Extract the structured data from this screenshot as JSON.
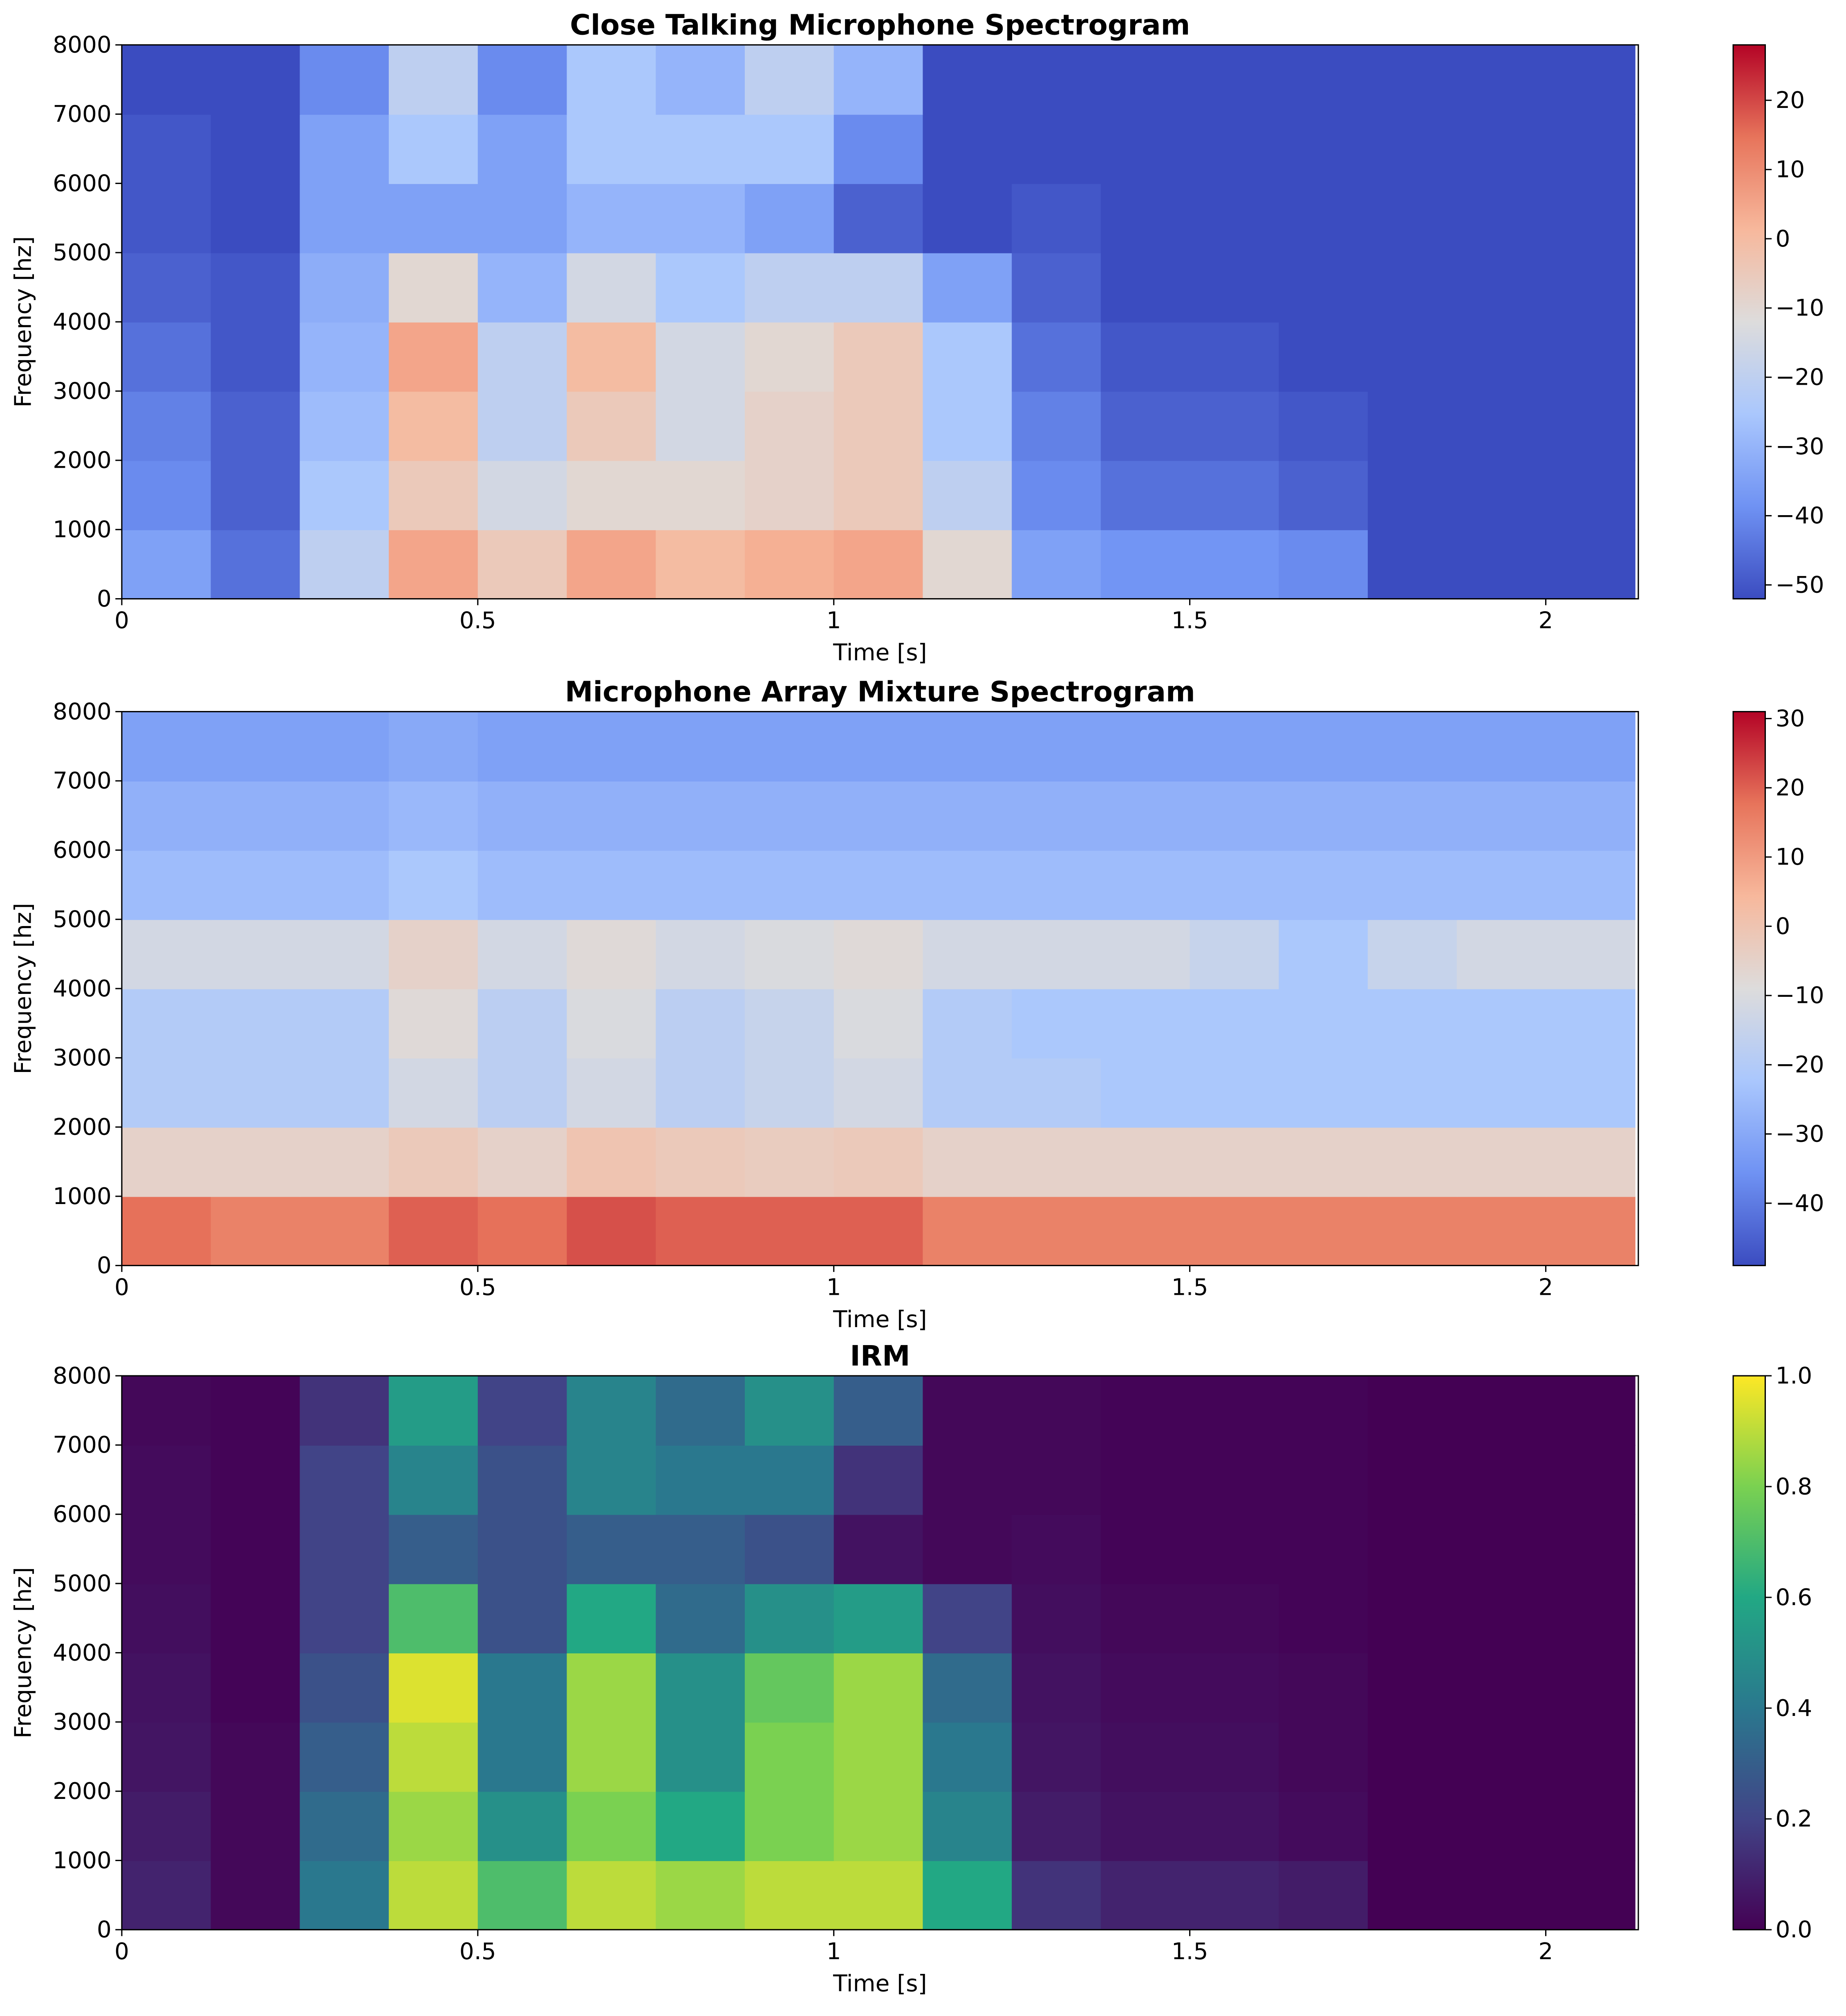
{
  "chart_data": [
    {
      "type": "heatmap",
      "title": "Close Talking Microphone Spectrogram",
      "xlabel": "Time [s]",
      "ylabel": "Frequency [hz]",
      "x": [
        0,
        0.125,
        0.25,
        0.375,
        0.5,
        0.625,
        0.75,
        0.875,
        1,
        1.125,
        1.25,
        1.375,
        1.5,
        1.625,
        1.75,
        1.875,
        2,
        2.125
      ],
      "y": [
        0,
        1000,
        2000,
        3000,
        4000,
        5000,
        6000,
        7000,
        8000
      ],
      "z": [
        [
          -35,
          -45,
          -20,
          5,
          -5,
          5,
          0,
          3,
          5,
          -10,
          -35,
          -38,
          -38,
          -40,
          -52,
          -52,
          -52
        ],
        [
          -40,
          -48,
          -25,
          -5,
          -15,
          -10,
          -10,
          -8,
          -5,
          -20,
          -40,
          -45,
          -45,
          -48,
          -52,
          -52,
          -52
        ],
        [
          -42,
          -48,
          -28,
          0,
          -20,
          -5,
          -15,
          -8,
          -5,
          -25,
          -42,
          -48,
          -48,
          -50,
          -52,
          -52,
          -52
        ],
        [
          -45,
          -50,
          -30,
          5,
          -20,
          0,
          -15,
          -10,
          -5,
          -25,
          -45,
          -50,
          -50,
          -52,
          -52,
          -52,
          -52
        ],
        [
          -48,
          -50,
          -32,
          -10,
          -30,
          -15,
          -25,
          -20,
          -20,
          -35,
          -48,
          -52,
          -52,
          -52,
          -52,
          -52,
          -52
        ],
        [
          -50,
          -52,
          -35,
          -35,
          -35,
          -30,
          -30,
          -35,
          -48,
          -52,
          -50,
          -52,
          -52,
          -52,
          -52,
          -52,
          -52
        ],
        [
          -50,
          -52,
          -35,
          -25,
          -35,
          -25,
          -25,
          -25,
          -40,
          -52,
          -52,
          -52,
          -52,
          -52,
          -52,
          -52,
          -52
        ],
        [
          -52,
          -52,
          -40,
          -20,
          -40,
          -25,
          -30,
          -20,
          -30,
          -52,
          -52,
          -52,
          -52,
          -52,
          -52,
          -52,
          -52
        ]
      ],
      "xlim": [
        0,
        2.13
      ],
      "ylim": [
        0,
        8000
      ],
      "xticks": [
        0,
        0.5,
        1,
        1.5,
        2
      ],
      "yticks": [
        0,
        1000,
        2000,
        3000,
        4000,
        5000,
        6000,
        7000,
        8000
      ],
      "colormap": [
        "#3b4cc0",
        "#6f92f3",
        "#aac7fd",
        "#dddcdc",
        "#f7b89c",
        "#e7745b",
        "#b40426"
      ],
      "clim": [
        -52,
        28
      ],
      "cticks": [
        {
          "value": -50,
          "label": "−50"
        },
        {
          "value": -40,
          "label": "−40"
        },
        {
          "value": -30,
          "label": "−30"
        },
        {
          "value": -20,
          "label": "−20"
        },
        {
          "value": -10,
          "label": "−10"
        },
        0,
        10,
        20
      ]
    },
    {
      "type": "heatmap",
      "title": "Microphone Array Mixture Spectrogram",
      "xlabel": "Time [s]",
      "ylabel": "Frequency [hz]",
      "x": [
        0,
        0.125,
        0.25,
        0.375,
        0.5,
        0.625,
        0.75,
        0.875,
        1,
        1.125,
        1.25,
        1.375,
        1.5,
        1.625,
        1.75,
        1.875,
        2,
        2.125
      ],
      "y": [
        0,
        1000,
        2000,
        3000,
        4000,
        5000,
        6000,
        7000,
        8000
      ],
      "z": [
        [
          18,
          15,
          15,
          20,
          18,
          22,
          20,
          20,
          20,
          15,
          15,
          15,
          15,
          15,
          15,
          15,
          15
        ],
        [
          -5,
          -5,
          -5,
          -2,
          -5,
          0,
          -2,
          -3,
          -2,
          -5,
          -5,
          -5,
          -5,
          -5,
          -5,
          -5,
          -5
        ],
        [
          -20,
          -20,
          -20,
          -12,
          -18,
          -12,
          -18,
          -15,
          -12,
          -20,
          -20,
          -22,
          -22,
          -22,
          -22,
          -22,
          -22
        ],
        [
          -20,
          -20,
          -20,
          -8,
          -18,
          -10,
          -18,
          -15,
          -10,
          -20,
          -22,
          -22,
          -22,
          -22,
          -22,
          -22,
          -22
        ],
        [
          -12,
          -12,
          -12,
          -5,
          -12,
          -8,
          -12,
          -10,
          -8,
          -12,
          -12,
          -12,
          -15,
          -22,
          -15,
          -12,
          -12
        ],
        [
          -25,
          -25,
          -25,
          -22,
          -25,
          -25,
          -25,
          -25,
          -25,
          -25,
          -25,
          -25,
          -25,
          -25,
          -25,
          -25,
          -25
        ],
        [
          -28,
          -28,
          -28,
          -26,
          -28,
          -28,
          -28,
          -28,
          -28,
          -28,
          -28,
          -28,
          -28,
          -28,
          -28,
          -28,
          -28
        ],
        [
          -32,
          -32,
          -32,
          -30,
          -32,
          -32,
          -32,
          -32,
          -32,
          -32,
          -32,
          -32,
          -32,
          -32,
          -32,
          -32,
          -32
        ]
      ],
      "xlim": [
        0,
        2.13
      ],
      "ylim": [
        0,
        8000
      ],
      "xticks": [
        0,
        0.5,
        1,
        1.5,
        2
      ],
      "yticks": [
        0,
        1000,
        2000,
        3000,
        4000,
        5000,
        6000,
        7000,
        8000
      ],
      "colormap": [
        "#3b4cc0",
        "#6f92f3",
        "#aac7fd",
        "#dddcdc",
        "#f7b89c",
        "#e7745b",
        "#b40426"
      ],
      "clim": [
        -49,
        31
      ],
      "cticks": [
        {
          "value": -40,
          "label": "−40"
        },
        {
          "value": -30,
          "label": "−30"
        },
        {
          "value": -20,
          "label": "−20"
        },
        {
          "value": -10,
          "label": "−10"
        },
        0,
        10,
        20,
        30
      ]
    },
    {
      "type": "heatmap",
      "title": "IRM",
      "xlabel": "Time [s]",
      "ylabel": "Frequency [hz]",
      "x": [
        0,
        0.125,
        0.25,
        0.375,
        0.5,
        0.625,
        0.75,
        0.875,
        1,
        1.125,
        1.25,
        1.375,
        1.5,
        1.625,
        1.75,
        1.875,
        2,
        2.125
      ],
      "y": [
        0,
        1000,
        2000,
        3000,
        4000,
        5000,
        6000,
        7000,
        8000
      ],
      "z": [
        [
          0.1,
          0.02,
          0.4,
          0.9,
          0.7,
          0.9,
          0.85,
          0.9,
          0.9,
          0.6,
          0.15,
          0.1,
          0.1,
          0.08,
          0,
          0,
          0
        ],
        [
          0.08,
          0.02,
          0.35,
          0.85,
          0.5,
          0.8,
          0.6,
          0.8,
          0.85,
          0.45,
          0.08,
          0.05,
          0.05,
          0.03,
          0,
          0,
          0
        ],
        [
          0.06,
          0.02,
          0.3,
          0.9,
          0.4,
          0.85,
          0.5,
          0.8,
          0.85,
          0.4,
          0.06,
          0.04,
          0.04,
          0.02,
          0,
          0,
          0
        ],
        [
          0.05,
          0.01,
          0.25,
          0.95,
          0.4,
          0.85,
          0.5,
          0.75,
          0.85,
          0.35,
          0.05,
          0.03,
          0.03,
          0.02,
          0,
          0,
          0
        ],
        [
          0.04,
          0.01,
          0.2,
          0.7,
          0.25,
          0.6,
          0.35,
          0.5,
          0.55,
          0.2,
          0.04,
          0.02,
          0.02,
          0.01,
          0,
          0,
          0
        ],
        [
          0.03,
          0.01,
          0.2,
          0.3,
          0.25,
          0.3,
          0.3,
          0.25,
          0.05,
          0.02,
          0.03,
          0.01,
          0.01,
          0.01,
          0,
          0,
          0
        ],
        [
          0.03,
          0.01,
          0.2,
          0.45,
          0.25,
          0.45,
          0.4,
          0.4,
          0.15,
          0.02,
          0.02,
          0.01,
          0.01,
          0.01,
          0,
          0,
          0
        ],
        [
          0.02,
          0.01,
          0.15,
          0.55,
          0.2,
          0.45,
          0.35,
          0.5,
          0.3,
          0.02,
          0.02,
          0.01,
          0.01,
          0.01,
          0,
          0,
          0
        ]
      ],
      "xlim": [
        0,
        2.13
      ],
      "ylim": [
        0,
        8000
      ],
      "xticks": [
        0,
        0.5,
        1,
        1.5,
        2
      ],
      "yticks": [
        0,
        1000,
        2000,
        3000,
        4000,
        5000,
        6000,
        7000,
        8000
      ],
      "colormap": [
        "#440154",
        "#414487",
        "#2a788e",
        "#22a884",
        "#7ad151",
        "#fde725"
      ],
      "clim": [
        0,
        1
      ],
      "cticks": [
        {
          "value": 0,
          "label": "0.0"
        },
        {
          "value": 0.2,
          "label": "0.2"
        },
        {
          "value": 0.4,
          "label": "0.4"
        },
        {
          "value": 0.6,
          "label": "0.6"
        },
        {
          "value": 0.8,
          "label": "0.8"
        },
        {
          "value": 1,
          "label": "1.0"
        }
      ]
    }
  ]
}
